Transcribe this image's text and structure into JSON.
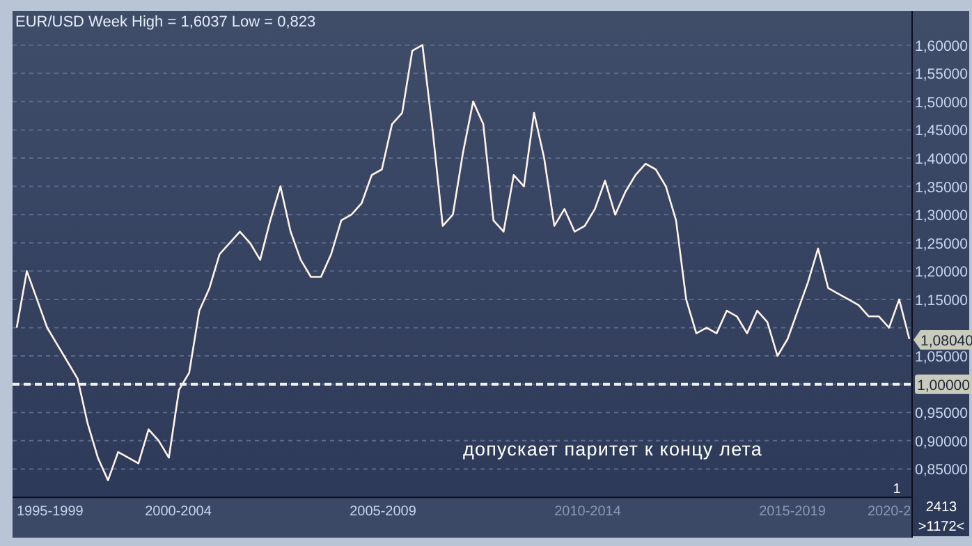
{
  "chart_data": {
    "type": "line",
    "title": "EUR/USD Week High = 1,6037 Low = 0,823",
    "annotations": [
      "допускает паритет к концу лета",
      "1995-1999",
      "2000-2004",
      "2005-2009",
      "2010-2014",
      "2015-2019",
      "2020-2",
      "1",
      "2413",
      ">1172<",
      "1,08040"
    ],
    "categories": [
      null,
      null,
      null,
      null,
      null,
      null,
      null,
      null,
      null,
      null,
      null,
      null,
      null,
      null,
      null,
      null,
      null,
      null,
      null,
      null,
      null,
      null,
      null,
      null,
      null,
      null,
      null,
      null,
      null,
      null,
      null,
      null,
      null,
      null,
      null,
      null,
      null,
      null,
      null,
      null,
      null,
      null,
      null,
      null,
      null,
      null,
      null,
      null,
      null,
      null,
      null,
      null,
      null,
      null,
      null,
      null,
      null,
      null,
      null,
      null,
      null,
      null,
      null,
      null,
      null,
      null,
      null,
      null,
      null,
      null,
      null,
      null,
      null,
      null,
      null,
      null,
      null,
      null,
      null,
      null,
      null,
      null,
      null,
      null,
      null,
      null,
      null,
      null,
      null
    ],
    "series": [
      {
        "color": "#fff3ec",
        "values": [
          1.1,
          1.2,
          1.15,
          1.1,
          1.07,
          1.04,
          1.01,
          0.93,
          0.87,
          0.83,
          0.88,
          0.87,
          0.86,
          0.92,
          0.9,
          0.87,
          0.99,
          1.02,
          1.13,
          1.17,
          1.23,
          1.25,
          1.27,
          1.25,
          1.22,
          1.29,
          1.35,
          1.27,
          1.22,
          1.19,
          1.19,
          1.23,
          1.29,
          1.3,
          1.32,
          1.37,
          1.38,
          1.46,
          1.48,
          1.59,
          1.6,
          1.45,
          1.28,
          1.3,
          1.41,
          1.5,
          1.46,
          1.29,
          1.27,
          1.37,
          1.35,
          1.48,
          1.4,
          1.28,
          1.31,
          1.27,
          1.28,
          1.31,
          1.36,
          1.3,
          1.34,
          1.37,
          1.39,
          1.38,
          1.35,
          1.29,
          1.15,
          1.09,
          1.1,
          1.09,
          1.13,
          1.12,
          1.09,
          1.13,
          1.11,
          1.05,
          1.08,
          1.13,
          1.18,
          1.24,
          1.17,
          1.16,
          1.15,
          1.14,
          1.12,
          1.12,
          1.1,
          1.15,
          1.08
        ]
      }
    ],
    "ylim": [
      0.8,
      1.66
    ],
    "yticks": [
      {
        "value": 0.85,
        "label": "0,85000"
      },
      {
        "value": 0.9,
        "label": "0,90000"
      },
      {
        "value": 0.95,
        "label": "0,95000"
      },
      {
        "value": 1.0,
        "label": null
      },
      {
        "value": 1.05,
        "label": "1,05000"
      },
      {
        "value": 1.1,
        "label": null
      },
      {
        "value": 1.15,
        "label": "1,15000"
      },
      {
        "value": 1.2,
        "label": "1,20000"
      },
      {
        "value": 1.25,
        "label": "1,25000"
      },
      {
        "value": 1.3,
        "label": "1,30000"
      },
      {
        "value": 1.35,
        "label": "1,35000"
      },
      {
        "value": 1.4,
        "label": "1,40000"
      },
      {
        "value": 1.45,
        "label": "1,45000"
      },
      {
        "value": 1.5,
        "label": "1,50000"
      },
      {
        "value": 1.55,
        "label": "1,55000"
      },
      {
        "value": 1.6,
        "label": "1,60000"
      }
    ],
    "ref_lines": [
      {
        "axis": "y",
        "value": 1.0,
        "label": "1,00000",
        "color": "#f0f0f0",
        "line_style": "dashed"
      }
    ],
    "grid": "y"
  }
}
